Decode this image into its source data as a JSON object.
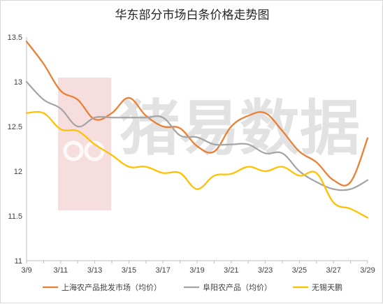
{
  "chart_data": {
    "type": "line",
    "title": "华东部分市场白条价格走势图",
    "xlabel": "",
    "ylabel": "",
    "ylim": [
      11,
      13.5
    ],
    "yticks": [
      "11",
      "11.5",
      "12",
      "12.5",
      "13",
      "13.5"
    ],
    "grid": false,
    "legend": "bottom",
    "x": [
      "3/9",
      "3/10",
      "3/11",
      "3/12",
      "3/13",
      "3/14",
      "3/15",
      "3/16",
      "3/17",
      "3/18",
      "3/19",
      "3/20",
      "3/21",
      "3/22",
      "3/23",
      "3/24",
      "3/25",
      "3/26",
      "3/27",
      "3/28",
      "3/29"
    ],
    "xtick_labels": [
      "3/9",
      "3/11",
      "3/13",
      "3/15",
      "3/17",
      "3/19",
      "3/21",
      "3/23",
      "3/25",
      "3/27",
      "3/29"
    ],
    "series": [
      {
        "name": "上海农产品批发市场（均价）",
        "color": "#ED7D31",
        "values": [
          13.45,
          13.2,
          12.9,
          12.8,
          12.58,
          12.65,
          12.82,
          12.62,
          12.5,
          12.48,
          12.28,
          12.22,
          12.5,
          12.62,
          12.65,
          12.45,
          12.22,
          12.1,
          11.9,
          11.88,
          12.37
        ]
      },
      {
        "name": "阜阳农产品（均价）",
        "color": "#A5A5A5",
        "values": [
          13.0,
          12.8,
          12.7,
          12.5,
          12.6,
          12.6,
          12.6,
          12.6,
          12.6,
          12.4,
          12.38,
          12.3,
          12.3,
          12.3,
          12.2,
          12.2,
          12.0,
          11.88,
          11.8,
          11.8,
          11.9
        ]
      },
      {
        "name": "无锡天鹏",
        "color": "#FFC000",
        "values": [
          12.65,
          12.65,
          12.47,
          12.45,
          12.3,
          12.18,
          12.05,
          12.05,
          11.98,
          11.98,
          11.8,
          11.95,
          11.97,
          12.05,
          12.0,
          12.05,
          11.95,
          11.98,
          11.65,
          11.58,
          11.48
        ]
      }
    ]
  },
  "watermark": {
    "text": "猪易数据",
    "icon": "pig-logo-icon",
    "color": "#f0c8c8"
  }
}
